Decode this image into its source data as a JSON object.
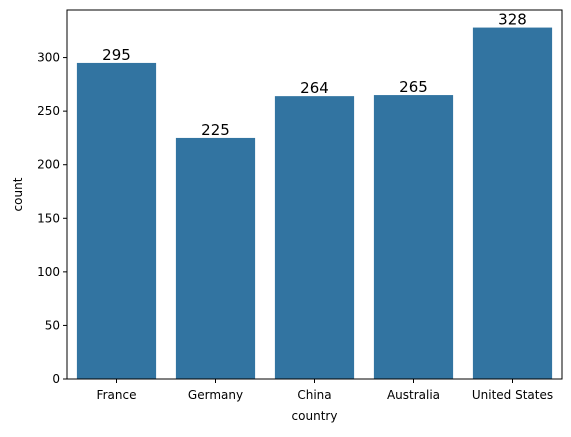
{
  "chart_data": {
    "type": "bar",
    "categories": [
      "France",
      "Germany",
      "China",
      "Australia",
      "United States"
    ],
    "values": [
      295,
      225,
      264,
      265,
      328
    ],
    "data_labels": [
      "295",
      "225",
      "264",
      "265",
      "328"
    ],
    "title": "",
    "xlabel": "country",
    "ylabel": "count",
    "ylim": [
      0,
      344.4
    ],
    "yticks": [
      0,
      50,
      100,
      150,
      200,
      250,
      300
    ],
    "grid": false,
    "bar_color": "#3274a1"
  }
}
